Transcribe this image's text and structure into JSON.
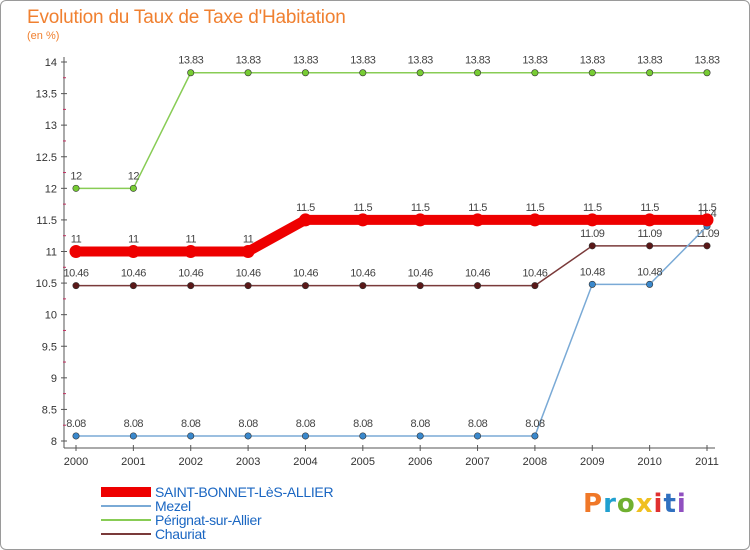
{
  "title": "Evolution du Taux de Taxe d'Habitation",
  "unit_label": "(en %)",
  "logo": {
    "text": "Proxiti",
    "colors": [
      "#f07828",
      "#20a0d0",
      "#70b030",
      "#f0c020",
      "#e03030",
      "#3070c0",
      "#9050c0"
    ]
  },
  "chart_data": {
    "type": "line",
    "title": "Evolution du Taux de Taxe d'Habitation",
    "ylabel": "(en %)",
    "xlabel": "",
    "x": [
      "2000",
      "2001",
      "2002",
      "2003",
      "2004",
      "2005",
      "2006",
      "2007",
      "2008",
      "2009",
      "2010",
      "2011"
    ],
    "ylim": [
      8,
      14
    ],
    "yticks": [
      "8",
      "8.5",
      "9",
      "9.5",
      "10",
      "10.5",
      "11",
      "11.5",
      "12",
      "12.5",
      "13",
      "13.5",
      "14"
    ],
    "grid": false,
    "legend_position": "bottom-left",
    "series": [
      {
        "name": "Pérignat-sur-Allier",
        "color": "#88cc55",
        "marker": "#77cc33",
        "values": [
          12,
          12,
          13.83,
          13.83,
          13.83,
          13.83,
          13.83,
          13.83,
          13.83,
          13.83,
          13.83,
          13.83
        ],
        "labels": [
          "12",
          "12",
          "13.83",
          "13.83",
          "13.83",
          "13.83",
          "13.83",
          "13.83",
          "13.83",
          "13.83",
          "13.83",
          "13.83"
        ]
      },
      {
        "name": "Chauriat",
        "color": "#7a3a3a",
        "marker": "#5a1818",
        "values": [
          10.46,
          10.46,
          10.46,
          10.46,
          10.46,
          10.46,
          10.46,
          10.46,
          10.46,
          11.09,
          11.09,
          11.09
        ],
        "labels": [
          "10.46",
          "10.46",
          "10.46",
          "10.46",
          "10.46",
          "10.46",
          "10.46",
          "10.46",
          "10.46",
          "11.09",
          "11.09",
          "11.09"
        ]
      },
      {
        "name": "Mezel",
        "color": "#7aaad6",
        "marker": "#3a88cc",
        "values": [
          8.08,
          8.08,
          8.08,
          8.08,
          8.08,
          8.08,
          8.08,
          8.08,
          8.08,
          10.48,
          10.48,
          11.4
        ],
        "labels": [
          "8.08",
          "8.08",
          "8.08",
          "8.08",
          "8.08",
          "8.08",
          "8.08",
          "8.08",
          "8.08",
          "10.48",
          "10.48",
          "11.4"
        ]
      },
      {
        "name": "SAINT-BONNET-LèS-ALLIER",
        "color": "#ee0000",
        "marker": "#ee0000",
        "values": [
          11,
          11,
          11,
          11,
          11.5,
          11.5,
          11.5,
          11.5,
          11.5,
          11.5,
          11.5,
          11.5
        ],
        "labels": [
          "11",
          "11",
          "11",
          "11",
          "11.5",
          "11.5",
          "11.5",
          "11.5",
          "11.5",
          "11.5",
          "11.5",
          "11.5"
        ]
      }
    ]
  },
  "legend": [
    {
      "label": "SAINT-BONNET-LèS-ALLIER",
      "color": "#ee0000",
      "thickness": "thick"
    },
    {
      "label": "Mezel",
      "color": "#7aaad6",
      "thickness": "thin"
    },
    {
      "label": "Pérignat-sur-Allier",
      "color": "#88cc55",
      "thickness": "thin"
    },
    {
      "label": "Chauriat",
      "color": "#7a3a3a",
      "thickness": "thin"
    }
  ]
}
